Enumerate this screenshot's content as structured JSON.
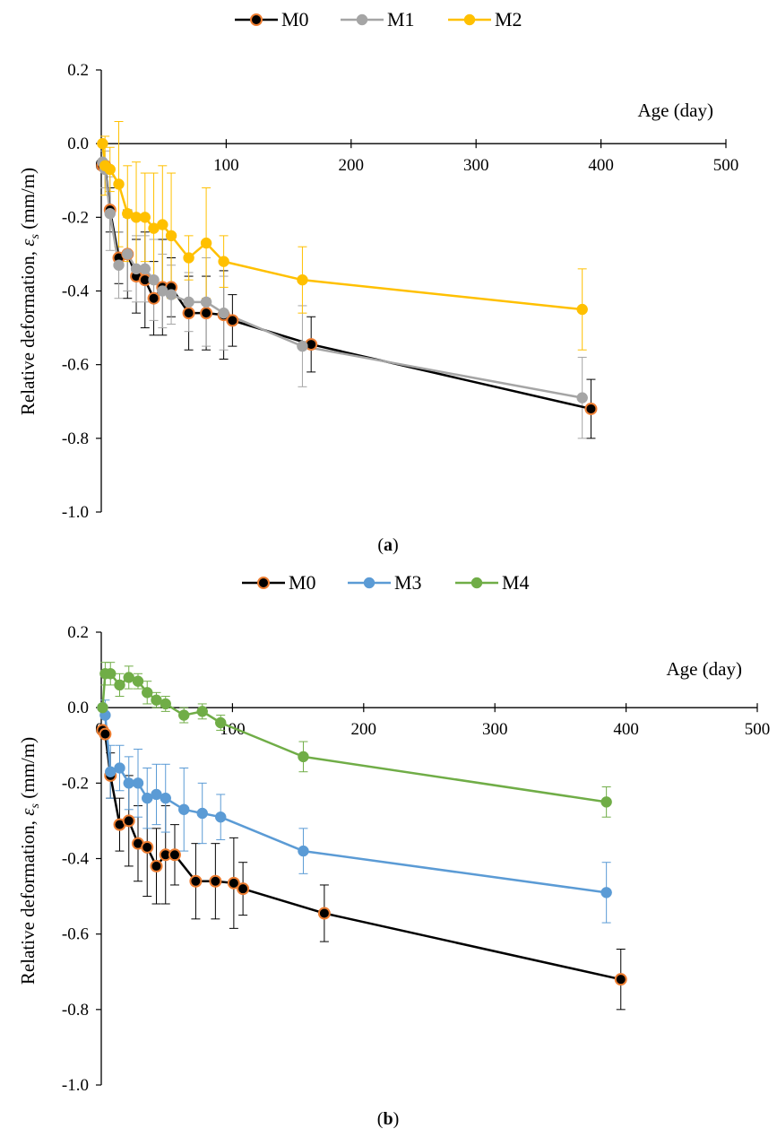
{
  "chart_data": [
    {
      "type": "line",
      "caption_letter": "a",
      "xlabel": "Age (day)",
      "ylabel_main": "Relative deformation, ",
      "ylabel_symbol": "ε",
      "ylabel_sub": "s",
      "ylabel_unit": " (mm/m)",
      "xlim": [
        0,
        500
      ],
      "ylim": [
        -1.0,
        0.2
      ],
      "xticks": [
        "0",
        "100",
        "200",
        "300",
        "400",
        "500"
      ],
      "yticks": [
        "0.2",
        "0.0",
        "-0.2",
        "-0.4",
        "-0.6",
        "-0.8",
        "-1.0"
      ],
      "legend_position": "top-center",
      "grid": false,
      "series": [
        {
          "name": "M0",
          "color": "#000000",
          "marker_fill": "#000000",
          "marker_edge": "#ED7D31",
          "error_color": "#000000",
          "x": [
            1,
            3,
            7,
            14,
            21,
            28,
            35,
            42,
            49,
            56,
            70,
            84,
            98,
            105,
            168,
            392
          ],
          "y": [
            -0.06,
            -0.06,
            -0.18,
            -0.31,
            -0.3,
            -0.36,
            -0.37,
            -0.42,
            -0.39,
            -0.39,
            -0.46,
            -0.46,
            -0.465,
            -0.48,
            -0.545,
            -0.72
          ],
          "err": [
            0,
            0,
            0.06,
            0.07,
            0.12,
            0.1,
            0.13,
            0.1,
            0.13,
            0.08,
            0.1,
            0.1,
            0.12,
            0.07,
            0.075,
            0.08
          ]
        },
        {
          "name": "M1",
          "color": "#A5A5A5",
          "marker_fill": "#A5A5A5",
          "marker_edge": "#A5A5A5",
          "error_color": "#A5A5A5",
          "x": [
            1,
            3,
            7,
            14,
            21,
            28,
            35,
            42,
            49,
            56,
            70,
            84,
            98,
            161,
            385
          ],
          "y": [
            -0.05,
            -0.07,
            -0.19,
            -0.33,
            -0.3,
            -0.34,
            -0.34,
            -0.37,
            -0.4,
            -0.41,
            -0.43,
            -0.43,
            -0.46,
            -0.55,
            -0.69
          ],
          "err": [
            0,
            0.05,
            0.1,
            0.09,
            0.1,
            0.09,
            0.09,
            0.11,
            0.1,
            0.08,
            0.08,
            0.12,
            0.1,
            0.11,
            0.11
          ]
        },
        {
          "name": "M2",
          "color": "#FFC000",
          "marker_fill": "#FFC000",
          "marker_edge": "#FFC000",
          "error_color": "#FFC000",
          "x": [
            1,
            3,
            7,
            14,
            21,
            28,
            35,
            42,
            49,
            56,
            70,
            84,
            98,
            161,
            385
          ],
          "y": [
            0.0,
            -0.06,
            -0.07,
            -0.11,
            -0.19,
            -0.2,
            -0.2,
            -0.23,
            -0.22,
            -0.25,
            -0.31,
            -0.27,
            -0.32,
            -0.37,
            -0.45
          ],
          "err": [
            0,
            0.08,
            0.06,
            0.17,
            0.13,
            0.15,
            0.12,
            0.15,
            0.16,
            0.17,
            0.06,
            0.15,
            0.07,
            0.09,
            0.11
          ]
        }
      ]
    },
    {
      "type": "line",
      "caption_letter": "b",
      "xlabel": "Age (day)",
      "ylabel_main": "Relative deformation, ",
      "ylabel_symbol": "ε",
      "ylabel_sub": "s",
      "ylabel_unit": " (mm/m)",
      "xlim": [
        0,
        500
      ],
      "ylim": [
        -1.0,
        0.2
      ],
      "xticks": [
        "0",
        "100",
        "200",
        "300",
        "400",
        "500"
      ],
      "yticks": [
        "0.2",
        "0.0",
        "-0.2",
        "-0.4",
        "-0.6",
        "-0.8",
        "-1.0"
      ],
      "legend_position": "top-center",
      "grid": false,
      "series": [
        {
          "name": "M0",
          "color": "#000000",
          "marker_fill": "#000000",
          "marker_edge": "#ED7D31",
          "error_color": "#000000",
          "x": [
            1,
            3,
            7,
            14,
            21,
            28,
            35,
            42,
            49,
            56,
            72,
            87,
            101,
            108,
            170,
            396
          ],
          "y": [
            -0.06,
            -0.07,
            -0.18,
            -0.31,
            -0.3,
            -0.36,
            -0.37,
            -0.42,
            -0.39,
            -0.39,
            -0.46,
            -0.46,
            -0.465,
            -0.48,
            -0.545,
            -0.72
          ],
          "err": [
            0,
            0,
            0.06,
            0.07,
            0.12,
            0.1,
            0.13,
            0.1,
            0.13,
            0.08,
            0.1,
            0.1,
            0.12,
            0.07,
            0.075,
            0.08
          ]
        },
        {
          "name": "M3",
          "color": "#5B9BD5",
          "marker_fill": "#5B9BD5",
          "marker_edge": "#5B9BD5",
          "error_color": "#5B9BD5",
          "x": [
            1,
            3,
            7,
            14,
            21,
            28,
            35,
            42,
            49,
            63,
            77,
            91,
            154,
            385
          ],
          "y": [
            0.0,
            -0.02,
            -0.17,
            -0.16,
            -0.2,
            -0.2,
            -0.24,
            -0.23,
            -0.24,
            -0.27,
            -0.28,
            -0.29,
            -0.38,
            -0.49
          ],
          "err": [
            0,
            0.04,
            0.07,
            0.06,
            0.07,
            0.09,
            0.08,
            0.08,
            0.09,
            0.11,
            0.08,
            0.06,
            0.06,
            0.08
          ]
        },
        {
          "name": "M4",
          "color": "#70AD47",
          "marker_fill": "#70AD47",
          "marker_edge": "#70AD47",
          "error_color": "#70AD47",
          "x": [
            1,
            3,
            7,
            14,
            21,
            28,
            35,
            42,
            49,
            63,
            77,
            91,
            154,
            385
          ],
          "y": [
            0.0,
            0.09,
            0.09,
            0.06,
            0.08,
            0.07,
            0.04,
            0.02,
            0.01,
            -0.02,
            -0.01,
            -0.04,
            -0.13,
            -0.25
          ],
          "err": [
            0,
            0.03,
            0.03,
            0.03,
            0.03,
            0.02,
            0.03,
            0.02,
            0.02,
            0.02,
            0.02,
            0.02,
            0.04,
            0.04
          ]
        }
      ]
    }
  ]
}
